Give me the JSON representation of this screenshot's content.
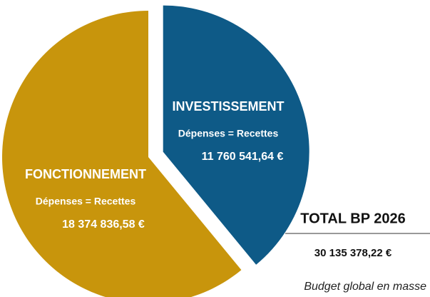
{
  "chart_data": {
    "type": "pie",
    "categories": [
      "INVESTISSEMENT",
      "FONCTIONNEMENT"
    ],
    "values": [
      11760541.64,
      18374836.58
    ],
    "value_labels": [
      "11 760 541,64 €",
      "18 374 836,58 €"
    ],
    "colors": [
      "#0e5a87",
      "#c8950c"
    ],
    "slice_note": "Dépenses = Recettes",
    "total_title": "TOTAL BP 2026",
    "total_value": "30 135 378,22 €",
    "caption": "Budget global en masse"
  }
}
